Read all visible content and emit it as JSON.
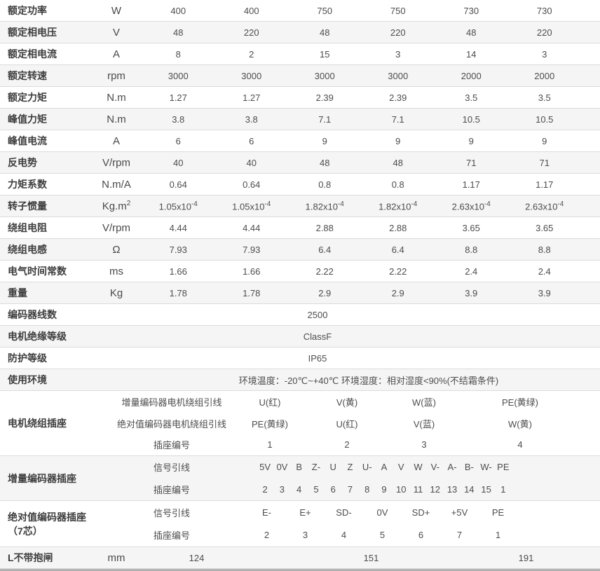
{
  "spec_rows": [
    {
      "label": "额定功率",
      "unit": "W",
      "values": [
        "400",
        "400",
        "750",
        "750",
        "730",
        "730"
      ]
    },
    {
      "label": "额定相电压",
      "unit": "V",
      "values": [
        "48",
        "220",
        "48",
        "220",
        "48",
        "220"
      ]
    },
    {
      "label": "额定相电流",
      "unit": "A",
      "values": [
        "8",
        "2",
        "15",
        "3",
        "14",
        "3"
      ]
    },
    {
      "label": "额定转速",
      "unit": "rpm",
      "values": [
        "3000",
        "3000",
        "3000",
        "3000",
        "2000",
        "2000"
      ]
    },
    {
      "label": "额定力矩",
      "unit": "N.m",
      "values": [
        "1.27",
        "1.27",
        "2.39",
        "2.39",
        "3.5",
        "3.5"
      ]
    },
    {
      "label": "峰值力矩",
      "unit": "N.m",
      "values": [
        "3.8",
        "3.8",
        "7.1",
        "7.1",
        "10.5",
        "10.5"
      ]
    },
    {
      "label": "峰值电流",
      "unit": "A",
      "values": [
        "6",
        "6",
        "9",
        "9",
        "9",
        "9"
      ]
    },
    {
      "label": "反电势",
      "unit": "V/rpm",
      "values": [
        "40",
        "40",
        "48",
        "48",
        "71",
        "71"
      ]
    },
    {
      "label": "力矩系数",
      "unit": "N.m/A",
      "values": [
        "0.64",
        "0.64",
        "0.8",
        "0.8",
        "1.17",
        "1.17"
      ]
    },
    {
      "label": "转子惯量",
      "unit_base": "Kg.m",
      "unit_sup": "2",
      "mantissas": [
        "1.05x10",
        "1.05x10",
        "1.82x10",
        "1.82x10",
        "2.63x10",
        "2.63x10"
      ],
      "exp": "-4"
    },
    {
      "label": "绕组电阻",
      "unit": "V/rpm",
      "values": [
        "4.44",
        "4.44",
        "2.88",
        "2.88",
        "3.65",
        "3.65"
      ]
    },
    {
      "label": "绕组电感",
      "unit": "Ω",
      "values": [
        "7.93",
        "7.93",
        "6.4",
        "6.4",
        "8.8",
        "8.8"
      ]
    },
    {
      "label": "电气时间常数",
      "unit": "ms",
      "values": [
        "1.66",
        "1.66",
        "2.22",
        "2.22",
        "2.4",
        "2.4"
      ]
    },
    {
      "label": "重量",
      "unit": "Kg",
      "values": [
        "1.78",
        "1.78",
        "2.9",
        "2.9",
        "3.9",
        "3.9"
      ]
    }
  ],
  "encoder_lines": {
    "label": "编码器线数",
    "value": "2500"
  },
  "insulation": {
    "label": "电机绝缘等级",
    "value": "ClassF"
  },
  "protection": {
    "label": "防护等级",
    "value": "IP65"
  },
  "environment": {
    "label": "使用环境",
    "value": "环境温度：-20℃~+40℃ 环境湿度：相对湿度<90%(不结霜条件)"
  },
  "winding_socket": {
    "label": "电机绕组插座",
    "rows": [
      {
        "sub_label": "增量编码器电机绕组引线",
        "values": [
          "U(红)",
          "V(黄)",
          "W(蓝)",
          "PE(黄绿)"
        ]
      },
      {
        "sub_label": "绝对值编码器电机绕组引线",
        "values": [
          "PE(黄绿)",
          "U(红)",
          "V(蓝)",
          "W(黄)"
        ]
      },
      {
        "sub_label": "插座编号",
        "values": [
          "1",
          "2",
          "3",
          "4"
        ]
      }
    ]
  },
  "incremental_socket": {
    "label": "增量编码器插座",
    "signal_label": "信号引线",
    "pin_label": "插座编号",
    "pins": [
      [
        "5V",
        "2"
      ],
      [
        "0V",
        "3"
      ],
      [
        "B",
        "4"
      ],
      [
        "Z-",
        "5"
      ],
      [
        "U",
        "6"
      ],
      [
        "Z",
        "7"
      ],
      [
        "U-",
        "8"
      ],
      [
        "A",
        "9"
      ],
      [
        "V",
        "10"
      ],
      [
        "W",
        "11"
      ],
      [
        "V-",
        "12"
      ],
      [
        "A-",
        "13"
      ],
      [
        "B-",
        "14"
      ],
      [
        "W-",
        "15"
      ],
      [
        "PE",
        "1"
      ]
    ]
  },
  "absolute_socket": {
    "label": "绝对值编码器插座（7芯）",
    "signal_label": "信号引线",
    "pin_label": "插座编号",
    "pins": [
      [
        "E-",
        "2"
      ],
      [
        "E+",
        "3"
      ],
      [
        "SD-",
        "4"
      ],
      [
        "0V",
        "5"
      ],
      [
        "SD+",
        "6"
      ],
      [
        "+5V",
        "7"
      ],
      [
        "PE",
        "1"
      ]
    ]
  },
  "length_row": {
    "label": "L不带抱闸",
    "unit": "mm",
    "values": [
      "124",
      "151",
      "191"
    ]
  }
}
